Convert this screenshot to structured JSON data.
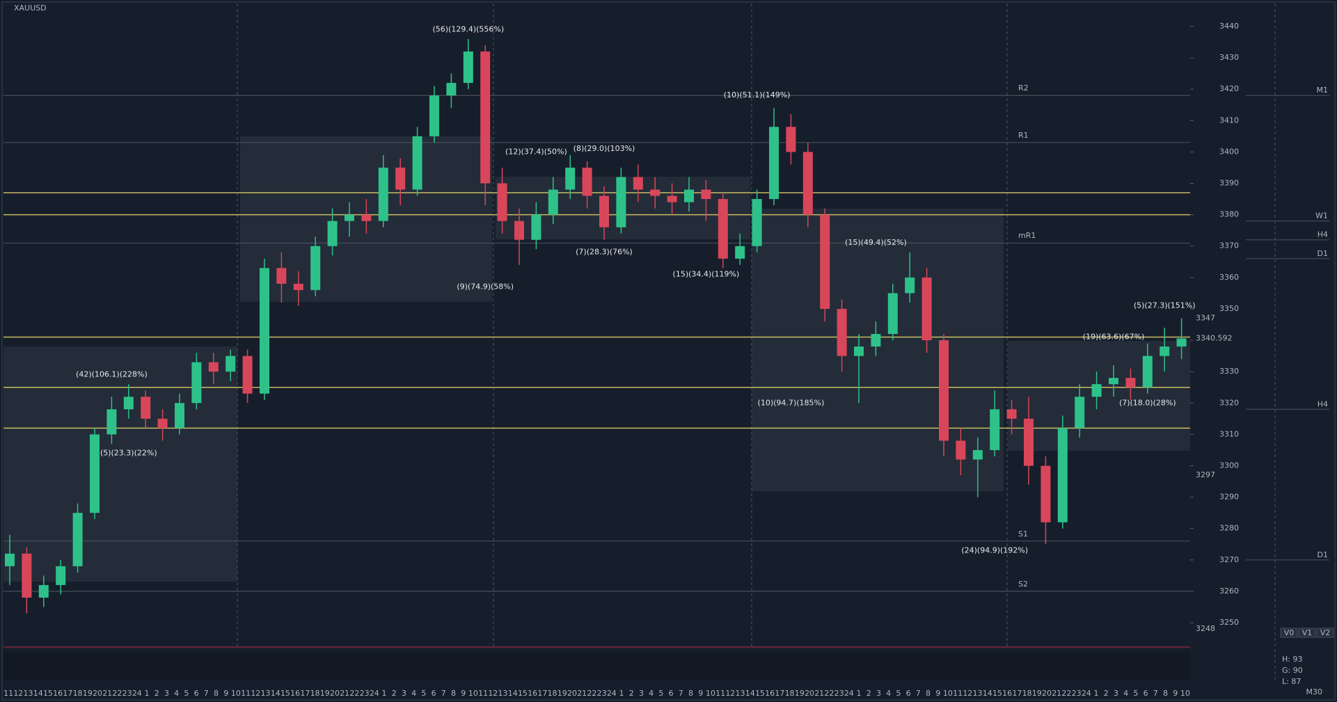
{
  "chart_data": {
    "type": "candlestick",
    "symbol": "XAUUSD",
    "timeframe": "M30",
    "up_color": "#2ec28a",
    "down_color": "#d9465a",
    "open": [
      3268,
      3272,
      3258,
      3262,
      3268,
      3285,
      3310,
      3318,
      3322,
      3315,
      3312,
      3320,
      3333,
      3330,
      3335,
      3323,
      3363,
      3358,
      3356,
      3370,
      3378,
      3380,
      3378,
      3395,
      3388,
      3405,
      3418,
      3422,
      3432,
      3390,
      3378,
      3372,
      3380,
      3388,
      3395,
      3386,
      3376,
      3392,
      3388,
      3386,
      3384,
      3388,
      3385,
      3366,
      3370,
      3385,
      3408,
      3400,
      3380,
      3350,
      3335,
      3338,
      3342,
      3355,
      3360,
      3340,
      3308,
      3302,
      3305,
      3318,
      3315,
      3300,
      3282,
      3312,
      3322,
      3326,
      3328,
      3325,
      3335,
      3338
    ],
    "high": [
      3278,
      3274,
      3265,
      3270,
      3288,
      3312,
      3322,
      3326,
      3324,
      3318,
      3323,
      3336,
      3336,
      3337,
      3337,
      3366,
      3368,
      3362,
      3373,
      3382,
      3384,
      3385,
      3399,
      3398,
      3408,
      3421,
      3425,
      3436,
      3434,
      3395,
      3382,
      3384,
      3392,
      3399,
      3397,
      3389,
      3395,
      3396,
      3392,
      3390,
      3392,
      3391,
      3387,
      3374,
      3388,
      3414,
      3412,
      3403,
      3382,
      3353,
      3342,
      3346,
      3358,
      3368,
      3363,
      3342,
      3312,
      3309,
      3324,
      3321,
      3322,
      3303,
      3316,
      3326,
      3330,
      3332,
      3331,
      3339,
      3344,
      3347
    ],
    "low": [
      3262,
      3253,
      3255,
      3259,
      3266,
      3283,
      3307,
      3315,
      3312,
      3308,
      3310,
      3318,
      3326,
      3327,
      3320,
      3321,
      3352,
      3351,
      3354,
      3367,
      3373,
      3374,
      3376,
      3383,
      3386,
      3403,
      3414,
      3420,
      3383,
      3374,
      3364,
      3369,
      3377,
      3385,
      3382,
      3372,
      3374,
      3384,
      3382,
      3380,
      3381,
      3378,
      3363,
      3364,
      3368,
      3383,
      3396,
      3376,
      3346,
      3330,
      3320,
      3335,
      3340,
      3352,
      3336,
      3303,
      3297,
      3290,
      3303,
      3310,
      3294,
      3275,
      3280,
      3309,
      3318,
      3322,
      3321,
      3323,
      3330,
      3334
    ],
    "close": [
      3272,
      3258,
      3262,
      3268,
      3285,
      3310,
      3318,
      3322,
      3315,
      3312,
      3320,
      3333,
      3330,
      3335,
      3323,
      3363,
      3358,
      3356,
      3370,
      3378,
      3380,
      3378,
      3395,
      3388,
      3405,
      3418,
      3422,
      3432,
      3390,
      3378,
      3372,
      3380,
      3388,
      3395,
      3386,
      3376,
      3392,
      3388,
      3386,
      3384,
      3388,
      3385,
      3366,
      3370,
      3385,
      3408,
      3400,
      3380,
      3350,
      3335,
      3338,
      3342,
      3355,
      3360,
      3340,
      3308,
      3302,
      3305,
      3318,
      3315,
      3300,
      3282,
      3312,
      3322,
      3326,
      3328,
      3325,
      3335,
      3338,
      3340.592
    ],
    "ylim": [
      3245,
      3445
    ],
    "yticks": [
      3250,
      3260,
      3270,
      3280,
      3290,
      3300,
      3310,
      3320,
      3330,
      3340,
      3350,
      3360,
      3370,
      3380,
      3390,
      3400,
      3410,
      3420,
      3430,
      3440
    ],
    "levels": [
      3387,
      3380,
      3341,
      3325,
      3312
    ],
    "level_color": "#e8d56a",
    "pivots": [
      {
        "label": "R2",
        "value": 3418
      },
      {
        "label": "R1",
        "value": 3403
      },
      {
        "label": "mR1",
        "value": 3371
      },
      {
        "label": "S1",
        "value": 3276
      },
      {
        "label": "S2",
        "value": 3260
      }
    ],
    "side_labels": [
      {
        "label": "M1",
        "value": 3418
      },
      {
        "label": "W1",
        "value": 3378
      },
      {
        "label": "H4",
        "value": 3372
      },
      {
        "label": "D1",
        "value": 3366
      },
      {
        "label": "H4",
        "value": 3318
      },
      {
        "label": "D1",
        "value": 3270
      }
    ],
    "marker_prices": [
      3347,
      3297,
      3248
    ],
    "annotations": [
      {
        "text": "(56)(129.4)(556%)",
        "candle": 27,
        "price": 3439
      },
      {
        "text": "(42)(106.1)(228%)",
        "candle": 6,
        "price": 3329
      },
      {
        "text": "(5)(23.3)(22%)",
        "candle": 7,
        "price": 3304
      },
      {
        "text": "(12)(37.4)(50%)",
        "candle": 31,
        "price": 3400
      },
      {
        "text": "(8)(29.0)(103%)",
        "candle": 35,
        "price": 3401
      },
      {
        "text": "(9)(74.9)(58%)",
        "candle": 28,
        "price": 3357
      },
      {
        "text": "(7)(28.3)(76%)",
        "candle": 35,
        "price": 3368
      },
      {
        "text": "(15)(34.4)(119%)",
        "candle": 41,
        "price": 3361
      },
      {
        "text": "(10)(51.1)(149%)",
        "candle": 44,
        "price": 3418
      },
      {
        "text": "(15)(49.4)(52%)",
        "candle": 51,
        "price": 3371
      },
      {
        "text": "(10)(94.7)(185%)",
        "candle": 46,
        "price": 3320
      },
      {
        "text": "(24)(94.9)(192%)",
        "candle": 58,
        "price": 3273
      },
      {
        "text": "(19)(63.6)(67%)",
        "candle": 65,
        "price": 3341
      },
      {
        "text": "(5)(27.3)(151%)",
        "candle": 68,
        "price": 3351
      },
      {
        "text": "(7)(18.0)(28%)",
        "candle": 67,
        "price": 3320
      }
    ],
    "x_labels": [
      "11",
      "12",
      "13",
      "14",
      "15",
      "16",
      "17",
      "18",
      "19",
      "20",
      "21",
      "22",
      "23",
      "24",
      "1",
      "2",
      "3",
      "4",
      "5",
      "6",
      "7",
      "8",
      "9",
      "10",
      "11",
      "12",
      "13",
      "14",
      "15",
      "16",
      "17",
      "18",
      "19",
      "20",
      "21",
      "22",
      "23",
      "24",
      "1",
      "2",
      "3",
      "4",
      "5",
      "6",
      "7",
      "8",
      "9",
      "10",
      "11",
      "12",
      "13",
      "14",
      "15",
      "16",
      "17",
      "18",
      "19",
      "20",
      "21",
      "22",
      "23",
      "24",
      "1",
      "2",
      "3",
      "4",
      "5",
      "6",
      "7",
      "8",
      "9",
      "10",
      "11",
      "12",
      "13",
      "14",
      "15",
      "16",
      "17",
      "18",
      "19",
      "20",
      "21",
      "22",
      "23",
      "24",
      "1",
      "2",
      "3",
      "4",
      "5",
      "6",
      "7",
      "8",
      "9",
      "10",
      "11",
      "12",
      "13",
      "14",
      "15",
      "16",
      "17",
      "18",
      "19",
      "20",
      "21",
      "22",
      "23",
      "24",
      "1",
      "2",
      "3",
      "4",
      "5",
      "6",
      "7",
      "8",
      "9",
      "10"
    ],
    "readout": [
      "H: 93",
      "G: 90",
      "L: 87"
    ],
    "buttons": [
      "V0",
      "V1",
      "V2"
    ]
  }
}
